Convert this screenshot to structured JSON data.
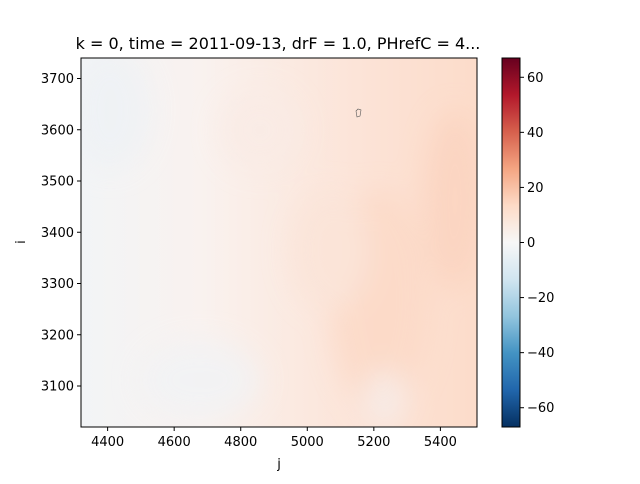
{
  "chart_data": {
    "type": "heatmap",
    "title": "k = 0, time = 2011-09-13, drF = 1.0, PHrefC = 4...",
    "xlabel": "j",
    "ylabel": "i",
    "xlim": [
      4320,
      5510
    ],
    "ylim": [
      3020,
      3740
    ],
    "xticks": [
      4400,
      4600,
      4800,
      5000,
      5200,
      5400
    ],
    "yticks": [
      3100,
      3200,
      3300,
      3400,
      3500,
      3600,
      3700
    ],
    "colorbar": {
      "colormap": "RdBu_r",
      "range": [
        -67,
        67
      ],
      "ticks": [
        60,
        40,
        20,
        0,
        -20,
        -40,
        -60
      ],
      "tick_labels": [
        "60",
        "40",
        "20",
        "0",
        "−20",
        "−40",
        "−60"
      ]
    },
    "field_trend": {
      "description_values_at_x": [
        4320,
        4700,
        5000,
        5250,
        5510
      ],
      "values": [
        -1,
        2,
        6,
        9,
        12
      ]
    },
    "grid": false
  }
}
